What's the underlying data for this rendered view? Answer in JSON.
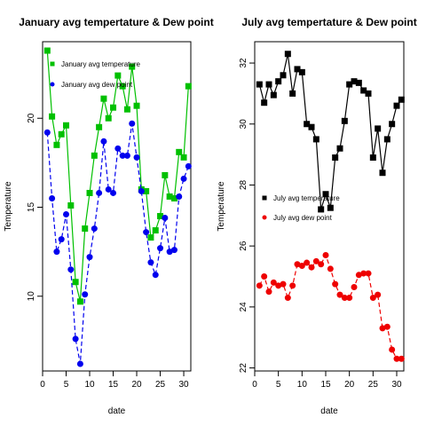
{
  "chart_data": [
    {
      "type": "line",
      "title": "January avg tempertature & Dew point",
      "xlabel": "date",
      "ylabel": "Temperature",
      "xlim": [
        0,
        31.5
      ],
      "ylim": [
        5.8,
        24.3
      ],
      "xticks": [
        "0",
        "5",
        "10",
        "15",
        "20",
        "25",
        "30"
      ],
      "yticks": [
        "10",
        "15",
        "20"
      ],
      "legend_position": "top-left",
      "x": [
        1,
        2,
        3,
        4,
        5,
        6,
        7,
        8,
        9,
        10,
        11,
        12,
        13,
        14,
        15,
        16,
        17,
        18,
        19,
        20,
        21,
        22,
        23,
        24,
        25,
        26,
        27,
        28,
        29,
        30,
        31
      ],
      "series": [
        {
          "name": "January avg temperature",
          "color": "#00c000",
          "line_style": "solid",
          "marker": "square",
          "values": [
            23.8,
            20.1,
            18.5,
            19.1,
            19.6,
            15.1,
            10.8,
            9.7,
            13.8,
            15.8,
            17.9,
            19.5,
            21.1,
            20.0,
            20.6,
            22.4,
            21.8,
            20.5,
            22.9,
            20.7,
            16.0,
            15.9,
            13.3,
            13.7,
            14.5,
            16.8,
            15.6,
            15.5,
            18.1,
            17.8,
            21.8
          ]
        },
        {
          "name": "January avg dew point",
          "color": "#0000ee",
          "line_style": "dashed",
          "marker": "circle",
          "values": [
            19.2,
            15.5,
            12.5,
            13.2,
            14.6,
            11.5,
            7.6,
            6.2,
            10.1,
            12.2,
            13.8,
            15.8,
            18.7,
            16.0,
            15.8,
            18.3,
            17.9,
            17.9,
            19.7,
            17.8,
            15.9,
            13.6,
            11.9,
            11.2,
            12.7,
            14.4,
            12.5,
            12.6,
            15.6,
            16.6,
            17.3
          ]
        }
      ]
    },
    {
      "type": "line",
      "title": "July avg tempertature & Dew point",
      "xlabel": "date",
      "ylabel": "Temperature",
      "xlim": [
        0,
        31.5
      ],
      "ylim": [
        21.9,
        32.7
      ],
      "xticks": [
        "0",
        "5",
        "10",
        "15",
        "20",
        "25",
        "30"
      ],
      "yticks": [
        "22",
        "24",
        "26",
        "28",
        "30",
        "32"
      ],
      "legend_position": "center-left",
      "x": [
        1,
        2,
        3,
        4,
        5,
        6,
        7,
        8,
        9,
        10,
        11,
        12,
        13,
        14,
        15,
        16,
        17,
        18,
        19,
        20,
        21,
        22,
        23,
        24,
        25,
        26,
        27,
        28,
        29,
        30,
        31
      ],
      "series": [
        {
          "name": "July avg temperature",
          "color": "#000000",
          "line_style": "solid",
          "marker": "square",
          "values": [
            31.3,
            30.7,
            31.3,
            30.95,
            31.4,
            31.6,
            32.3,
            31.0,
            31.8,
            31.7,
            30.0,
            29.9,
            29.5,
            27.2,
            27.7,
            27.25,
            28.9,
            29.2,
            30.1,
            31.3,
            31.4,
            31.35,
            31.1,
            31.0,
            28.9,
            29.85,
            28.4,
            29.5,
            30.0,
            30.6,
            30.8
          ]
        },
        {
          "name": "July avg dew point",
          "color": "#ee0000",
          "line_style": "dashed",
          "marker": "circle",
          "values": [
            24.7,
            25.0,
            24.5,
            24.8,
            24.7,
            24.75,
            24.3,
            24.7,
            25.4,
            25.35,
            25.45,
            25.3,
            25.5,
            25.4,
            25.7,
            25.25,
            24.75,
            24.4,
            24.3,
            24.3,
            24.65,
            25.05,
            25.1,
            25.1,
            24.3,
            24.4,
            23.3,
            23.35,
            22.6,
            22.3,
            22.3
          ]
        }
      ]
    }
  ]
}
